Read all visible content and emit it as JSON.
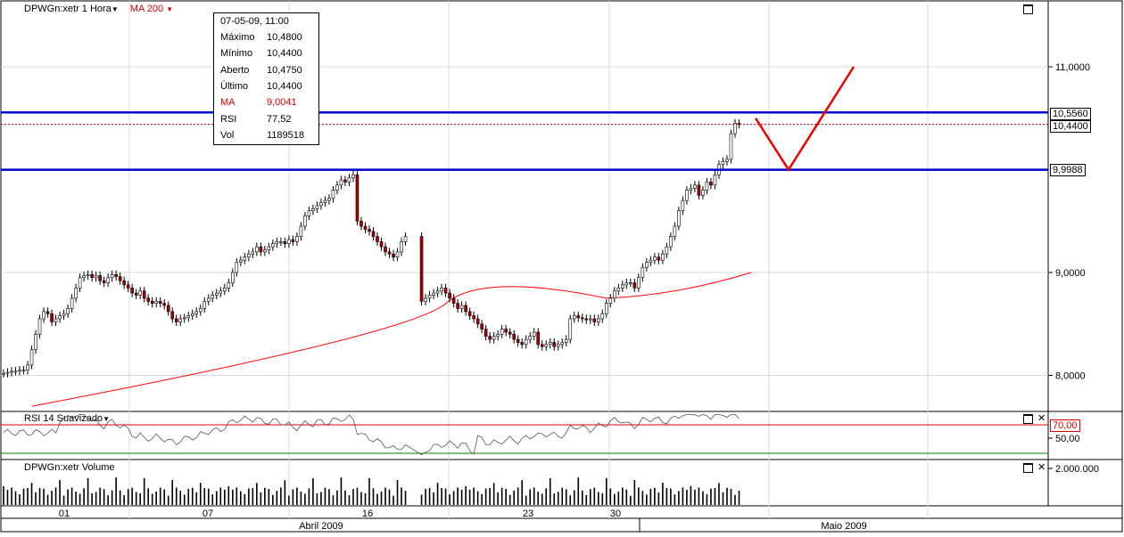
{
  "price_pane": {
    "symbol_label": "DPWGn:xetr 1 Hora",
    "ma_label": "MA 200",
    "level_upper": "10,5560",
    "level_last": "10,4400",
    "level_lower": "9,9988",
    "colors": {
      "up_line": "#0000cc",
      "indicator": "#e00000",
      "ma_line": "#ff0000",
      "candle_up": "#ffffff",
      "candle_down": "#aa0000"
    }
  },
  "info_box": {
    "date": "07-05-09, 11:00",
    "rows": [
      {
        "k": "Máximo",
        "v": "10,4800",
        "red": false
      },
      {
        "k": "Mínimo",
        "v": "10,4400",
        "red": false
      },
      {
        "k": "Aberto",
        "v": "10,4750",
        "red": false
      },
      {
        "k": "Último",
        "v": "10,4400",
        "red": false
      },
      {
        "k": "MA",
        "v": "9,0041",
        "red": true
      },
      {
        "k": "RSI",
        "v": "77,52",
        "red": false
      },
      {
        "k": "Vol",
        "v": "1189518",
        "red": false
      }
    ]
  },
  "rsi_pane": {
    "label": "RSI 14 Suavizado",
    "tag_70": "70,00",
    "tick_50": "50,00"
  },
  "volume_pane": {
    "label": "DPWGn:xetr Volume",
    "tick": "2.000.000"
  },
  "x_axis": {
    "day_labels": [
      "01",
      "07",
      "16",
      "23",
      "30"
    ],
    "month_labels": [
      "Abril 2009",
      "Maio 2009"
    ]
  },
  "chart_data": {
    "type": "line",
    "title": "DPWGn:xetr 1 Hora",
    "y_ticks": [
      "11,0000",
      "9,0000",
      "8,0000"
    ],
    "ylim": [
      7.7,
      11.6
    ],
    "series": [
      {
        "name": "DPWGn:xetr 1 Hora",
        "kind": "candlestick",
        "close": [
          8.02,
          8.03,
          8.04,
          8.04,
          8.05,
          8.05,
          8.1,
          8.25,
          8.4,
          8.55,
          8.62,
          8.6,
          8.52,
          8.55,
          8.58,
          8.6,
          8.65,
          8.75,
          8.85,
          8.95,
          8.97,
          8.98,
          8.95,
          8.97,
          8.92,
          8.9,
          8.95,
          8.98,
          8.96,
          8.92,
          8.88,
          8.85,
          8.8,
          8.78,
          8.82,
          8.75,
          8.72,
          8.7,
          8.72,
          8.7,
          8.68,
          8.62,
          8.55,
          8.52,
          8.55,
          8.56,
          8.58,
          8.6,
          8.62,
          8.65,
          8.72,
          8.75,
          8.78,
          8.8,
          8.82,
          8.85,
          8.9,
          9.0,
          9.1,
          9.12,
          9.15,
          9.18,
          9.2,
          9.25,
          9.2,
          9.22,
          9.25,
          9.28,
          9.3,
          9.3,
          9.28,
          9.32,
          9.3,
          9.35,
          9.45,
          9.55,
          9.6,
          9.62,
          9.65,
          9.68,
          9.7,
          9.72,
          9.8,
          9.85,
          9.9,
          9.88,
          9.92,
          9.95,
          9.5,
          9.45,
          9.42,
          9.4,
          9.35,
          9.3,
          9.25,
          9.2,
          9.18,
          9.15,
          9.2,
          9.3,
          9.35,
          8.72,
          8.75,
          8.78,
          8.8,
          8.82,
          8.85,
          8.8,
          8.75,
          8.7,
          8.65,
          8.68,
          8.62,
          8.58,
          8.55,
          8.5,
          8.45,
          8.38,
          8.35,
          8.38,
          8.4,
          8.45,
          8.42,
          8.4,
          8.35,
          8.32,
          8.3,
          8.35,
          8.38,
          8.42,
          8.3,
          8.28,
          8.3,
          8.32,
          8.28,
          8.3,
          8.32,
          8.35,
          8.55,
          8.58,
          8.56,
          8.55,
          8.54,
          8.55,
          8.52,
          8.55,
          8.6,
          8.7,
          8.75,
          8.82,
          8.85,
          8.88,
          8.9,
          8.9,
          8.85,
          8.95,
          9.05,
          9.1,
          9.12,
          9.15,
          9.12,
          9.18,
          9.25,
          9.35,
          9.45,
          9.6,
          9.7,
          9.8,
          9.82,
          9.85,
          9.75,
          9.8,
          9.88,
          9.85,
          9.95,
          10.05,
          10.08,
          10.1,
          10.35,
          10.45,
          10.44
        ],
        "ma200": [
          7.7,
          8.9,
          9.0
        ]
      },
      {
        "name": "RSI 14 Suavizado",
        "kind": "line"
      },
      {
        "name": "DPWGn:xetr Volume",
        "kind": "bar"
      }
    ]
  }
}
